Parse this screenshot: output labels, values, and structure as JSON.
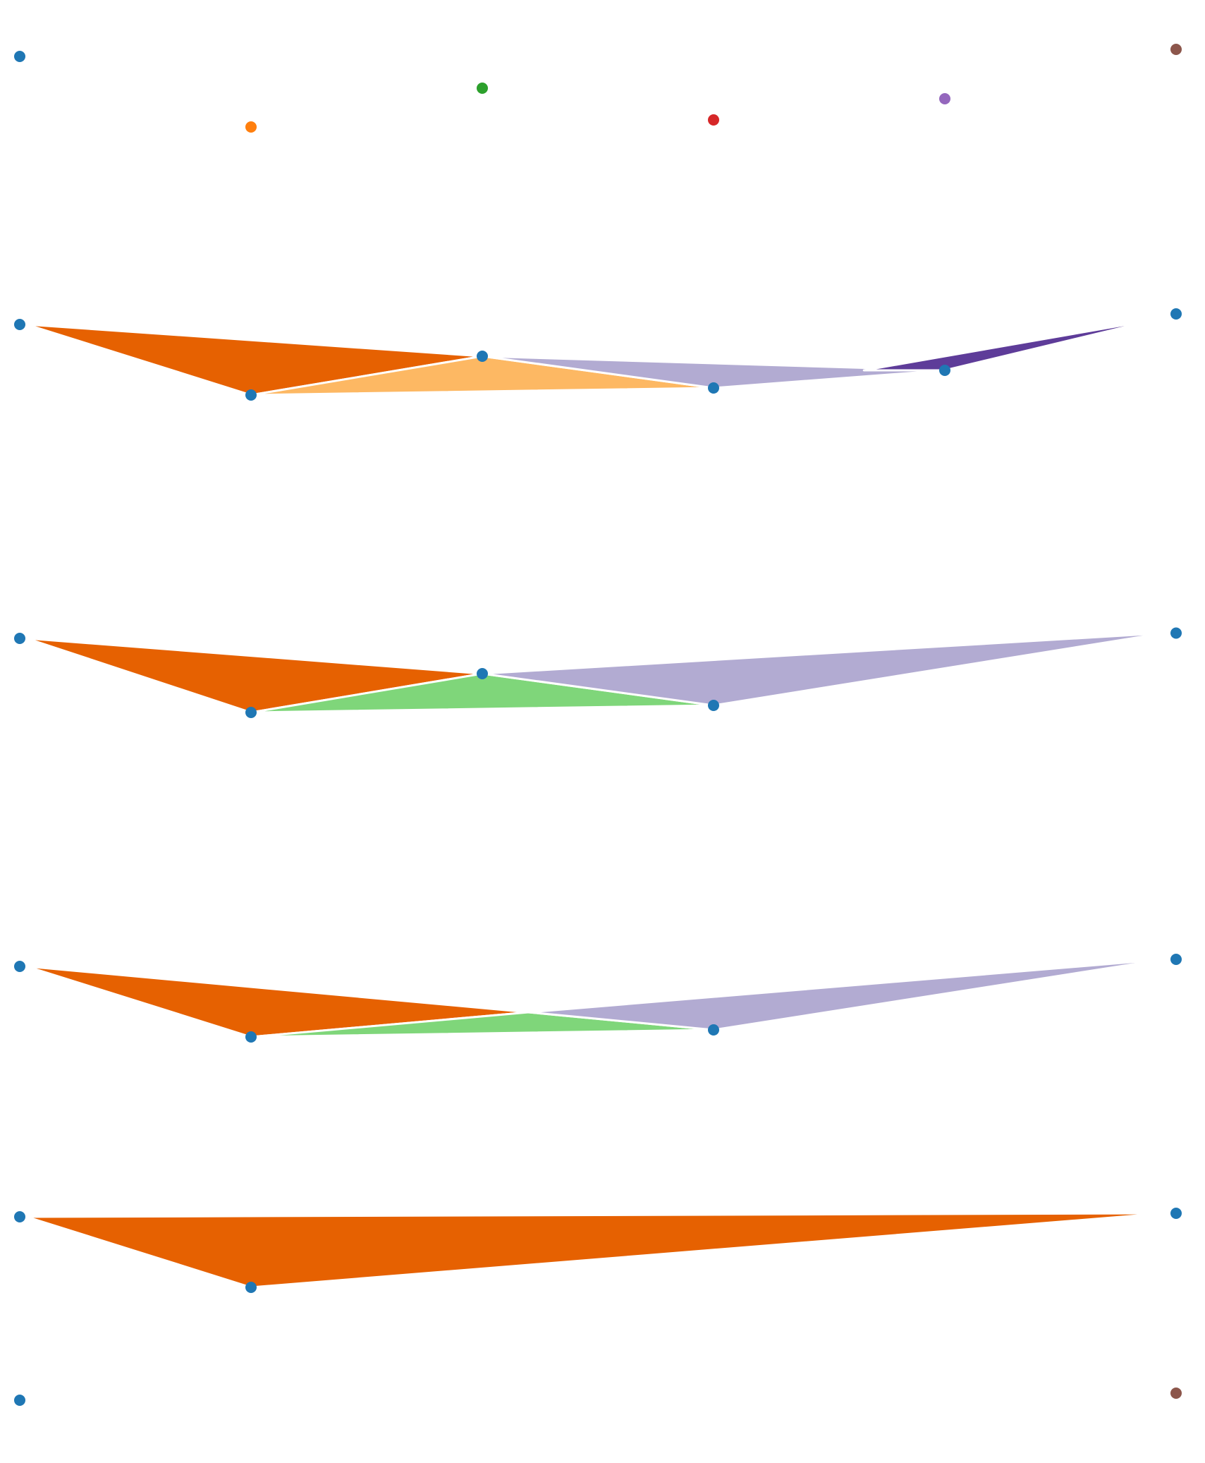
{
  "colors": {
    "node_default": "#1f77b4",
    "palette": {
      "orange": "#ff7f0e",
      "green": "#2ca02c",
      "red": "#d62728",
      "purple": "#9467bd",
      "brown": "#8c564b",
      "dark_orange": "#e66101",
      "light_orange": "#fdb863",
      "light_purple": "#b2abd2",
      "dark_purple": "#5e3c99",
      "light_green": "#7fd67a"
    }
  },
  "chart_data": {
    "type": "diagram",
    "scale": "unlabeled",
    "description_note": "",
    "rows": [
      {
        "id": "row-0",
        "nodes": [
          {
            "id": "n0",
            "value": [
              0.0,
              0.0
            ],
            "color": "node_default"
          },
          {
            "id": "n1",
            "value": [
              1.0,
              -2.0
            ],
            "color": "orange"
          },
          {
            "id": "n2",
            "value": [
              2.0,
              -0.9
            ],
            "color": "green"
          },
          {
            "id": "n3",
            "value": [
              3.0,
              -1.8
            ],
            "color": "red"
          },
          {
            "id": "n4",
            "value": [
              4.0,
              -1.2
            ],
            "color": "purple"
          },
          {
            "id": "n5",
            "value": [
              5.0,
              0.2
            ],
            "color": "brown"
          }
        ],
        "wedges": []
      },
      {
        "id": "row-1",
        "nodes": [
          {
            "id": "n0",
            "value": [
              0.0,
              0.0
            ],
            "color": "node_default"
          },
          {
            "id": "n1",
            "value": [
              1.0,
              -2.0
            ],
            "color": "node_default"
          },
          {
            "id": "n2",
            "value": [
              2.0,
              -0.9
            ],
            "color": "node_default"
          },
          {
            "id": "n3",
            "value": [
              3.0,
              -1.8
            ],
            "color": "node_default"
          },
          {
            "id": "n4",
            "value": [
              4.0,
              -1.3
            ],
            "color": "node_default"
          },
          {
            "id": "n5",
            "value": [
              5.0,
              0.3
            ],
            "color": "node_default"
          }
        ],
        "wedges": [
          {
            "id": "w0",
            "color": "dark_orange",
            "points": [
              [
                0.03,
                0.0
              ],
              [
                1.0,
                -2.0
              ],
              [
                2.0,
                -0.9
              ]
            ]
          },
          {
            "id": "w1",
            "color": "light_orange",
            "points": [
              [
                1.0,
                -2.0
              ],
              [
                2.0,
                -0.9
              ],
              [
                3.0,
                -1.8
              ]
            ]
          },
          {
            "id": "w2",
            "color": "light_purple",
            "points": [
              [
                2.0,
                -0.9
              ],
              [
                3.0,
                -1.8
              ],
              [
                4.0,
                -1.3
              ]
            ]
          },
          {
            "id": "w3",
            "color": "dark_purple",
            "points": [
              [
                3.65,
                -1.3
              ],
              [
                4.0,
                -1.3
              ],
              [
                4.92,
                0.15
              ]
            ]
          }
        ]
      },
      {
        "id": "row-2",
        "nodes": [
          {
            "id": "n0",
            "value": [
              0.0,
              0.0
            ],
            "color": "node_default"
          },
          {
            "id": "n1",
            "value": [
              1.0,
              -2.1
            ],
            "color": "node_default"
          },
          {
            "id": "n2",
            "value": [
              2.0,
              -1.0
            ],
            "color": "node_default"
          },
          {
            "id": "n3",
            "value": [
              3.0,
              -1.9
            ],
            "color": "node_default"
          },
          {
            "id": "n5",
            "value": [
              5.0,
              0.15
            ],
            "color": "node_default"
          }
        ],
        "wedges": [
          {
            "id": "w0",
            "color": "dark_orange",
            "points": [
              [
                0.03,
                0.0
              ],
              [
                1.0,
                -2.1
              ],
              [
                2.0,
                -1.0
              ]
            ]
          },
          {
            "id": "w1",
            "color": "light_green",
            "points": [
              [
                1.0,
                -2.1
              ],
              [
                2.0,
                -1.0
              ],
              [
                3.0,
                -1.9
              ]
            ]
          },
          {
            "id": "w2",
            "color": "light_purple",
            "points": [
              [
                2.0,
                -1.0
              ],
              [
                3.0,
                -1.9
              ],
              [
                4.95,
                0.15
              ]
            ]
          }
        ]
      },
      {
        "id": "row-3",
        "nodes": [
          {
            "id": "n0",
            "value": [
              0.0,
              0.0
            ],
            "color": "node_default"
          },
          {
            "id": "n1",
            "value": [
              1.0,
              -2.0
            ],
            "color": "node_default"
          },
          {
            "id": "n3",
            "value": [
              3.0,
              -1.8
            ],
            "color": "node_default"
          },
          {
            "id": "n5",
            "value": [
              5.0,
              0.2
            ],
            "color": "node_default"
          }
        ],
        "wedges": [
          {
            "id": "w0",
            "color": "dark_orange",
            "points": [
              [
                0.03,
                0.0
              ],
              [
                1.0,
                -2.0
              ],
              [
                2.2,
                -1.3
              ]
            ]
          },
          {
            "id": "w1",
            "color": "light_green",
            "points": [
              [
                1.0,
                -2.0
              ],
              [
                2.2,
                -1.3
              ],
              [
                3.0,
                -1.8
              ]
            ]
          },
          {
            "id": "w2",
            "color": "light_purple",
            "points": [
              [
                2.2,
                -1.3
              ],
              [
                3.0,
                -1.8
              ],
              [
                4.95,
                0.2
              ]
            ]
          }
        ]
      },
      {
        "id": "row-4",
        "nodes": [
          {
            "id": "n0",
            "value": [
              0.0,
              0.0
            ],
            "color": "node_default"
          },
          {
            "id": "n1",
            "value": [
              1.0,
              -2.0
            ],
            "color": "node_default"
          },
          {
            "id": "n5",
            "value": [
              5.0,
              0.1
            ],
            "color": "node_default"
          }
        ],
        "wedges": [
          {
            "id": "w0",
            "color": "dark_orange",
            "points": [
              [
                0.03,
                0.0
              ],
              [
                1.0,
                -2.0
              ],
              [
                4.95,
                0.1
              ]
            ]
          }
        ]
      },
      {
        "id": "row-5",
        "nodes": [
          {
            "id": "n0",
            "value": [
              0.0,
              0.0
            ],
            "color": "node_default"
          },
          {
            "id": "n5",
            "value": [
              5.0,
              0.2
            ],
            "color": "brown"
          }
        ],
        "wedges": []
      }
    ]
  }
}
